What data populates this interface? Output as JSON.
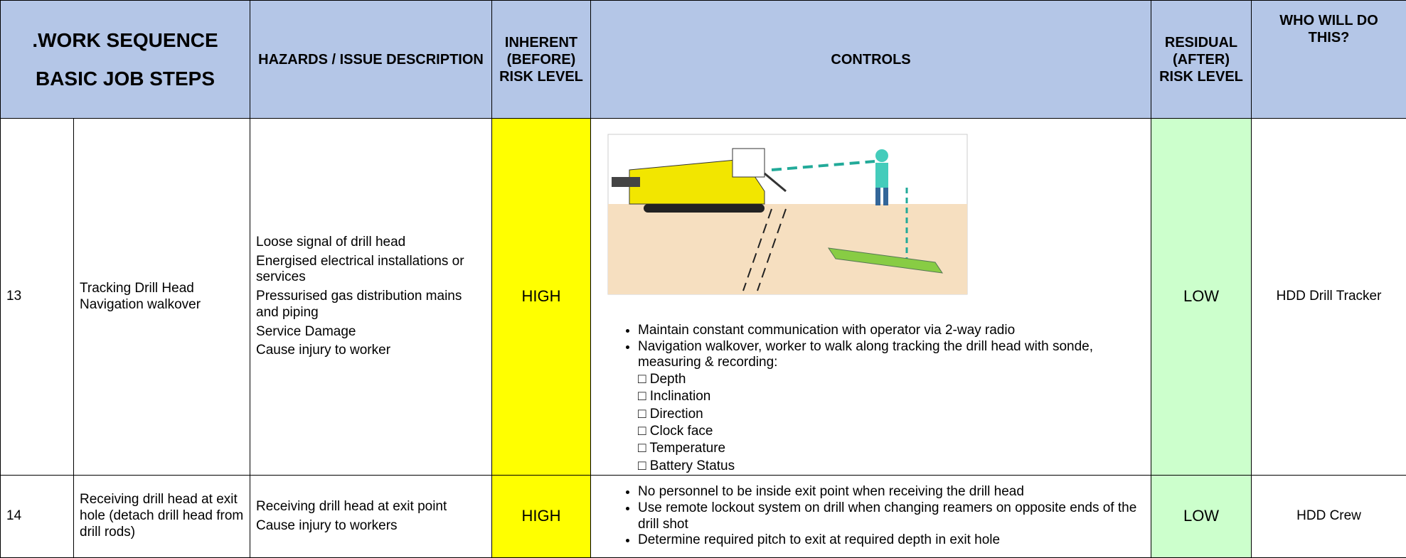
{
  "header": {
    "work_sequence": ".WORK SEQUENCE",
    "basic_job_steps": "BASIC JOB STEPS",
    "hazards": "HAZARDS / ISSUE DESCRIPTION",
    "inherent": "INHERENT (BEFORE) RISK LEVEL",
    "controls": "CONTROLS",
    "residual": "RESIDUAL (AFTER) RISK LEVEL",
    "who": "WHO WILL DO THIS?"
  },
  "rows": [
    {
      "number": "13",
      "step": "Tracking Drill Head Navigation walkover",
      "hazards": [
        "Loose signal of drill head",
        "Energised electrical installations or services",
        "Pressurised gas distribution mains and piping",
        "Service Damage",
        "Cause injury to worker"
      ],
      "inherent": "HIGH",
      "controls": [
        {
          "text": "Maintain constant communication with operator via 2-way radio"
        },
        {
          "text": "Navigation walkover, worker to walk along tracking the drill head with sonde, measuring & recording:",
          "subitems": [
            "□ Depth",
            "□ Inclination",
            "□ Direction",
            "□ Clock face",
            "□ Temperature",
            "□ Battery Status"
          ]
        }
      ],
      "residual": "LOW",
      "who": "HDD Drill Tracker"
    },
    {
      "number": "14",
      "step": "Receiving drill head at exit hole (detach drill head from drill rods)",
      "hazards": [
        "Receiving drill head at exit point",
        "Cause injury to workers"
      ],
      "inherent": "HIGH",
      "controls": [
        {
          "text": "No personnel to be inside exit point when receiving the drill head"
        },
        {
          "text": "Use remote lockout system on drill when changing reamers on opposite ends of the drill shot"
        },
        {
          "text": "Determine required pitch to exit at required depth in exit hole"
        }
      ],
      "residual": "LOW",
      "who": "HDD Crew"
    }
  ]
}
